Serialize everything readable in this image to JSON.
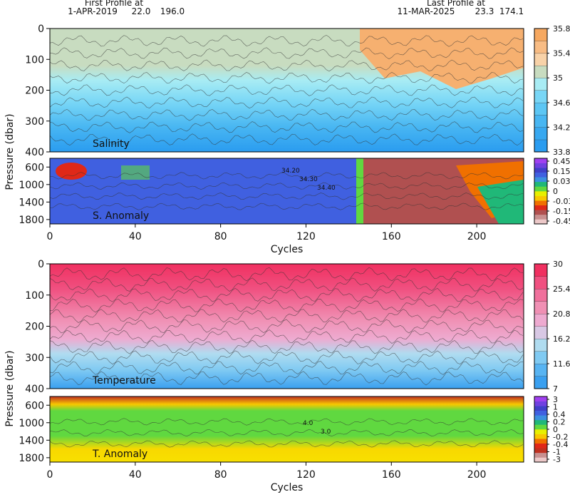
{
  "header": {
    "first_label": "First Profile at",
    "first_date": "1-APR-2019",
    "first_lat": "22.0",
    "first_lon": "196.0",
    "last_label": "Last Profile at",
    "last_date": "11-MAR-2025",
    "last_lat": "23.3",
    "last_lon": "174.1"
  },
  "chart_data": [
    {
      "type": "contour",
      "label": "Salinity",
      "ylabel": "Pressure (dbar)",
      "xlim": [
        0,
        222
      ],
      "ylim": [
        0,
        400
      ],
      "yticks": [
        0,
        100,
        200,
        300,
        400
      ],
      "colorbar": {
        "lim": [
          33.8,
          35.8
        ],
        "ticks": [
          33.8,
          34.2,
          34.6,
          35,
          35.4,
          35.8
        ],
        "colors": [
          "#2a9cf0",
          "#38a8f0",
          "#48b6f2",
          "#5cc6f4",
          "#78d6f6",
          "#a8ecf4",
          "#c8dcc0",
          "#f8d2a8",
          "#f8bc84",
          "#f6a860"
        ]
      }
    },
    {
      "type": "contour",
      "label": "S. Anomaly",
      "xlabel": "Cycles",
      "xlim": [
        0,
        222
      ],
      "ylim": [
        400,
        1900
      ],
      "yticks": [
        600,
        1000,
        1400,
        1800
      ],
      "xticks": [
        0,
        40,
        80,
        120,
        160,
        200
      ],
      "contour_labels": [
        "34.20",
        "34.30",
        "34.40"
      ],
      "colorbar": {
        "scale": "levels",
        "ticks": [
          0.45,
          0.15,
          0.03,
          0,
          -0.03,
          -0.15,
          -0.45
        ],
        "colors": [
          "#ecc8c8",
          "#c89090",
          "#b05050",
          "#e02818",
          "#f07000",
          "#f8c800",
          "#e8f000",
          "#60d840",
          "#20b878",
          "#3c90e0",
          "#4060e0",
          "#4040c8",
          "#7040e0",
          "#a040f0"
        ]
      }
    },
    {
      "type": "contour",
      "label": "Temperature",
      "ylabel": "Pressure (dbar)",
      "xlim": [
        0,
        222
      ],
      "ylim": [
        0,
        400
      ],
      "yticks": [
        0,
        100,
        200,
        300,
        400
      ],
      "colorbar": {
        "lim": [
          7,
          30
        ],
        "ticks": [
          7,
          11.6,
          16.2,
          20.8,
          25.4,
          30
        ],
        "colors": [
          "#3aa0f0",
          "#58b4f2",
          "#80caf2",
          "#b0dcf0",
          "#d8c8e4",
          "#eeaad0",
          "#f090b4",
          "#f0709c",
          "#f05080",
          "#f03060"
        ]
      }
    },
    {
      "type": "contour",
      "label": "T. Anomaly",
      "xlabel": "Cycles",
      "xlim": [
        0,
        222
      ],
      "ylim": [
        400,
        1900
      ],
      "yticks": [
        600,
        1000,
        1400,
        1800
      ],
      "xticks": [
        0,
        40,
        80,
        120,
        160,
        200
      ],
      "contour_labels": [
        "4.0",
        "3.0"
      ],
      "colorbar": {
        "scale": "levels",
        "ticks": [
          3,
          1,
          0.4,
          0.2,
          0,
          -0.2,
          -0.4,
          -1,
          -3
        ],
        "colors": [
          "#ecc8c8",
          "#c89090",
          "#c03020",
          "#e02818",
          "#f07000",
          "#f8c800",
          "#e8f000",
          "#60d840",
          "#20b878",
          "#3c90e0",
          "#4060e0",
          "#4040c8",
          "#7040e0",
          "#a040f0"
        ]
      }
    }
  ]
}
